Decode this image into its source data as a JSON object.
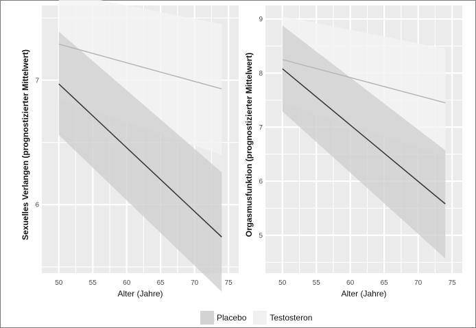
{
  "legend": {
    "items": [
      {
        "label": "Placebo",
        "color": "#d3d3d3"
      },
      {
        "label": "Testosteron",
        "color": "#f0f0f0"
      }
    ]
  },
  "colors": {
    "panel_bg": "#ebebeb",
    "grid": "#ffffff",
    "placebo_line": "#3a3a3a",
    "placebo_ribbon": "#cfcfcf",
    "testosteron_line": "#b8b8b8",
    "testosteron_ribbon": "#f3f3f3"
  },
  "chart_data": [
    {
      "type": "line",
      "xlabel": "Alter (Jahre)",
      "ylabel": "Sexuelles Verlangen (prognostizierter Mittelwert)",
      "xlim": [
        47.5,
        76.5
      ],
      "ylim": [
        5.45,
        7.6
      ],
      "x_ticks": [
        50,
        55,
        60,
        65,
        70,
        75
      ],
      "y_ticks": [
        6,
        7
      ],
      "grid": true,
      "legend": "bottom",
      "series": [
        {
          "name": "Placebo",
          "x": [
            50,
            74
          ],
          "y": [
            6.97,
            5.74
          ],
          "lower": [
            6.56,
            5.3
          ],
          "upper": [
            7.39,
            6.26
          ]
        },
        {
          "name": "Testosteron",
          "x": [
            50,
            74
          ],
          "y": [
            7.29,
            6.93
          ],
          "lower": [
            6.84,
            6.4
          ],
          "upper": [
            7.71,
            7.45
          ]
        }
      ]
    },
    {
      "type": "line",
      "xlabel": "Alter (Jahre)",
      "ylabel": "Orgasmusfunktion (prognostizierter Mittelwert)",
      "xlim": [
        47.5,
        76.5
      ],
      "ylim": [
        4.3,
        9.25
      ],
      "x_ticks": [
        50,
        55,
        60,
        65,
        70,
        75
      ],
      "y_ticks": [
        5,
        6,
        7,
        8,
        9
      ],
      "grid": true,
      "legend": "bottom",
      "series": [
        {
          "name": "Placebo",
          "x": [
            50,
            74
          ],
          "y": [
            8.08,
            5.58
          ],
          "lower": [
            7.29,
            4.57
          ],
          "upper": [
            8.88,
            6.57
          ]
        },
        {
          "name": "Testosteron",
          "x": [
            50,
            74
          ],
          "y": [
            8.25,
            7.45
          ],
          "lower": [
            7.45,
            6.45
          ],
          "upper": [
            9.05,
            8.45
          ]
        }
      ]
    }
  ]
}
